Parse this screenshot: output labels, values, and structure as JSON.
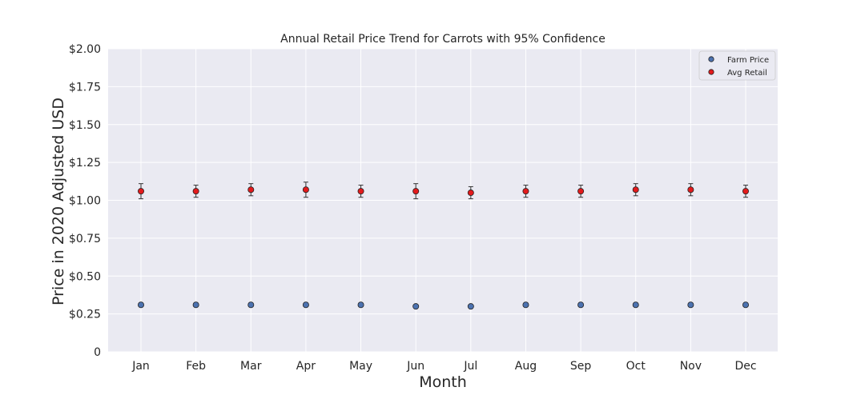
{
  "chart_data": {
    "type": "scatter",
    "title": "Annual Retail Price Trend for Carrots with 95% Confidence",
    "xlabel": "Month",
    "ylabel": "Price in 2020 Adjusted USD",
    "categories": [
      "Jan",
      "Feb",
      "Mar",
      "Apr",
      "May",
      "Jun",
      "Jul",
      "Aug",
      "Sep",
      "Oct",
      "Nov",
      "Dec"
    ],
    "ylim": [
      0,
      2.0
    ],
    "yticks": [
      {
        "value": 0,
        "label": "0"
      },
      {
        "value": 0.25,
        "label": "$0.25"
      },
      {
        "value": 0.5,
        "label": "$0.50"
      },
      {
        "value": 0.75,
        "label": "$0.75"
      },
      {
        "value": 1.0,
        "label": "$1.00"
      },
      {
        "value": 1.25,
        "label": "$1.25"
      },
      {
        "value": 1.5,
        "label": "$1.50"
      },
      {
        "value": 1.75,
        "label": "$1.75"
      },
      {
        "value": 2.0,
        "label": "$2.00"
      }
    ],
    "grid": true,
    "legend_position": "top-right",
    "series": [
      {
        "name": "Farm Price",
        "color": "#4c72b0",
        "values": [
          0.31,
          0.31,
          0.31,
          0.31,
          0.31,
          0.3,
          0.3,
          0.31,
          0.31,
          0.31,
          0.31,
          0.31
        ]
      },
      {
        "name": "Avg Retail",
        "color": "#e31a1c",
        "values": [
          1.06,
          1.06,
          1.07,
          1.07,
          1.06,
          1.06,
          1.05,
          1.06,
          1.06,
          1.07,
          1.07,
          1.06
        ],
        "error_low": [
          1.01,
          1.02,
          1.03,
          1.02,
          1.02,
          1.01,
          1.01,
          1.02,
          1.02,
          1.03,
          1.03,
          1.02
        ],
        "error_high": [
          1.11,
          1.1,
          1.11,
          1.12,
          1.1,
          1.11,
          1.09,
          1.1,
          1.1,
          1.11,
          1.11,
          1.1
        ]
      }
    ]
  }
}
